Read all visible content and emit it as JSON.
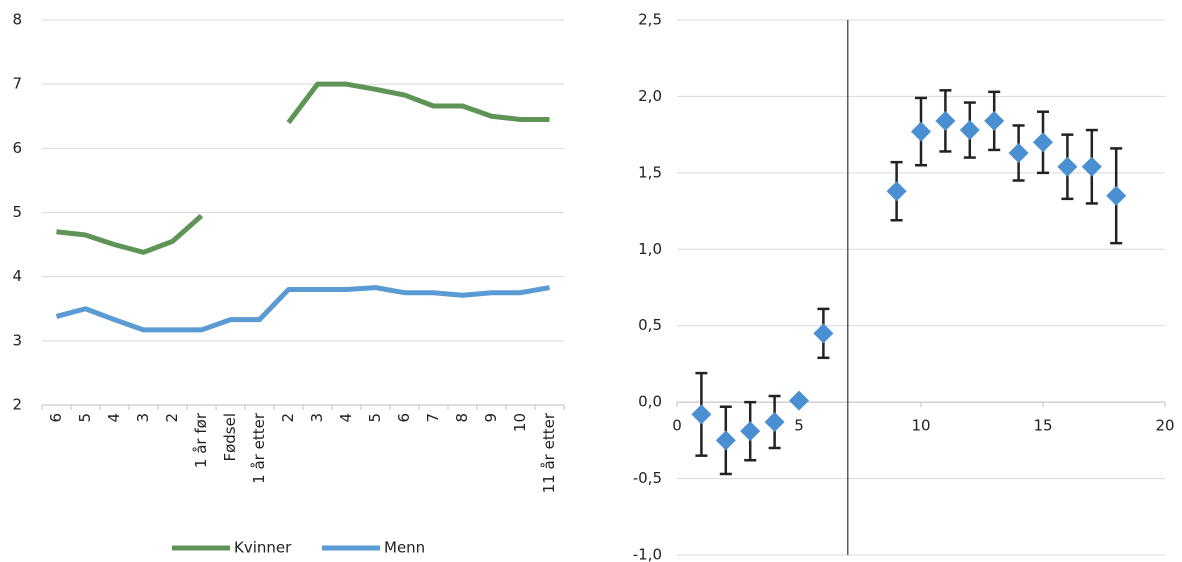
{
  "chart_data": [
    {
      "type": "line",
      "categories": [
        "6",
        "5",
        "4",
        "3",
        "2",
        "1 år før",
        "Fødsel",
        "1 år etter",
        "2",
        "3",
        "4",
        "5",
        "6",
        "7",
        "8",
        "9",
        "10",
        "11 år etter"
      ],
      "series": [
        {
          "name": "Kvinner",
          "color": "#5e9557",
          "values": [
            4.7,
            4.65,
            4.5,
            4.38,
            4.55,
            4.95,
            null,
            null,
            6.4,
            7.0,
            7.0,
            6.92,
            6.83,
            6.66,
            6.66,
            6.5,
            6.45,
            6.45
          ]
        },
        {
          "name": "Menn",
          "color": "#5a9bd3",
          "values": [
            3.38,
            3.5,
            3.33,
            3.17,
            3.17,
            3.17,
            3.33,
            3.33,
            3.8,
            3.8,
            3.8,
            3.83,
            3.75,
            3.75,
            3.71,
            3.75,
            3.75,
            3.83
          ]
        }
      ],
      "ylim": [
        2,
        8
      ],
      "yticks": [
        2,
        3,
        4,
        5,
        6,
        7,
        8
      ],
      "grid": true,
      "legend": "bottom"
    },
    {
      "type": "scatter",
      "x": [
        1,
        2,
        3,
        4,
        5,
        6,
        9,
        10,
        11,
        12,
        13,
        14,
        15,
        16,
        17,
        18
      ],
      "series": [
        {
          "color": "#4a8fd2",
          "values": [
            -0.08,
            -0.25,
            -0.19,
            -0.13,
            0.01,
            0.45,
            1.38,
            1.77,
            1.84,
            1.78,
            1.84,
            1.63,
            1.7,
            1.54,
            1.54,
            1.35
          ],
          "errors": [
            0.27,
            0.22,
            0.19,
            0.17,
            0,
            0.16,
            0.19,
            0.22,
            0.2,
            0.18,
            0.19,
            0.18,
            0.2,
            0.21,
            0.24,
            0.31
          ]
        }
      ],
      "xlim": [
        0,
        20
      ],
      "xticks": [
        0,
        5,
        10,
        15,
        20
      ],
      "ylim": [
        -1,
        2.5
      ],
      "yticks": [
        {
          "value": -1,
          "label": "-1,0"
        },
        {
          "value": -0.5,
          "label": "-0,5"
        },
        {
          "value": 0,
          "label": "0,0"
        },
        {
          "value": 0.5,
          "label": "0,5"
        },
        {
          "value": 1,
          "label": "1,0"
        },
        {
          "value": 1.5,
          "label": "1,5"
        },
        {
          "value": 2,
          "label": "2,0"
        },
        {
          "value": 2.5,
          "label": "2,5"
        }
      ],
      "vline": 7,
      "grid": true
    }
  ]
}
